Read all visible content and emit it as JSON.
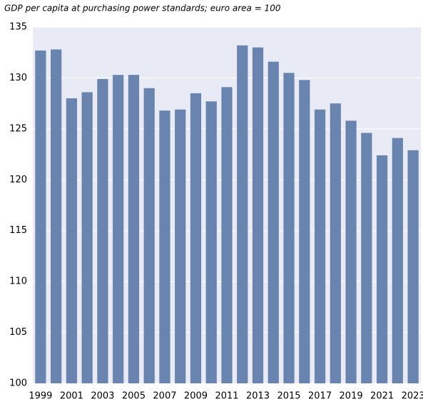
{
  "chart_data": {
    "type": "bar",
    "title": "GDP per capita at purchasing power standards; euro area = 100",
    "categories": [
      "1999",
      null,
      "2001",
      null,
      "2003",
      null,
      "2005",
      null,
      "2007",
      null,
      "2009",
      null,
      "2011",
      null,
      "2013",
      null,
      "2015",
      null,
      "2017",
      null,
      "2019",
      null,
      "2021",
      null,
      "2023"
    ],
    "values": [
      132.7,
      132.8,
      128.0,
      128.6,
      129.9,
      130.3,
      130.3,
      129.0,
      126.8,
      126.9,
      128.5,
      127.7,
      129.1,
      133.2,
      133.0,
      131.6,
      130.5,
      129.8,
      126.9,
      127.5,
      125.8,
      124.6,
      122.4,
      124.1,
      122.9
    ],
    "color": "#6a84b0",
    "ylim": [
      100,
      135
    ],
    "yticks": [
      100,
      105,
      110,
      115,
      120,
      125,
      130,
      135
    ],
    "grid": true
  }
}
